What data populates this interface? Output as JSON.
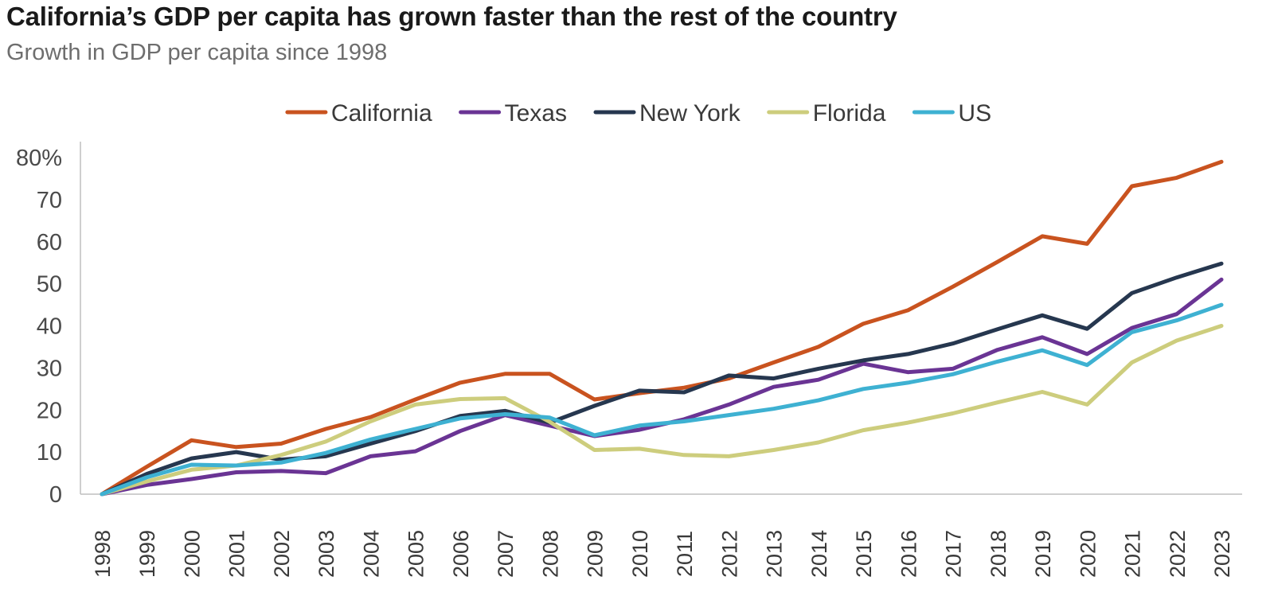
{
  "title": "California’s GDP per capita has grown faster than the rest of the country",
  "subtitle": "Growth in GDP per capita since 1998",
  "chart_data": {
    "type": "line",
    "x": [
      "1998",
      "1999",
      "2000",
      "2001",
      "2002",
      "2003",
      "2004",
      "2005",
      "2006",
      "2007",
      "2008",
      "2009",
      "2010",
      "2011",
      "2012",
      "2013",
      "2014",
      "2015",
      "2016",
      "2017",
      "2018",
      "2019",
      "2020",
      "2021",
      "2022",
      "2023"
    ],
    "y_ticks": [
      "0",
      "10",
      "20",
      "30",
      "40",
      "50",
      "60",
      "70",
      "80%"
    ],
    "ylim": [
      0,
      80
    ],
    "grid": false,
    "legend_position": "top",
    "series": [
      {
        "name": "California",
        "color": "#c9531f",
        "values": [
          0,
          6.5,
          12.8,
          11.2,
          12.0,
          15.5,
          18.3,
          22.5,
          26.5,
          28.6,
          28.6,
          22.5,
          24.0,
          25.3,
          27.5,
          31.3,
          35.0,
          40.5,
          43.7,
          49.3,
          55.2,
          61.3,
          59.5,
          73.2,
          75.2,
          79.0
        ]
      },
      {
        "name": "Texas",
        "color": "#6a3494",
        "values": [
          0,
          2.2,
          3.6,
          5.2,
          5.5,
          5.0,
          9.0,
          10.2,
          15.0,
          18.8,
          16.3,
          13.8,
          15.3,
          17.8,
          21.3,
          25.5,
          27.2,
          31.0,
          29.0,
          29.8,
          34.3,
          37.3,
          33.3,
          39.5,
          42.8,
          51.0
        ]
      },
      {
        "name": "New York",
        "color": "#26374f",
        "values": [
          0,
          4.8,
          8.5,
          10.0,
          8.2,
          9.0,
          12.0,
          15.0,
          18.6,
          19.8,
          17.0,
          21.0,
          24.6,
          24.2,
          28.2,
          27.5,
          29.8,
          31.8,
          33.3,
          35.8,
          39.2,
          42.5,
          39.3,
          47.8,
          51.5,
          54.8
        ]
      },
      {
        "name": "Florida",
        "color": "#cdcd7d",
        "values": [
          0,
          3.0,
          5.8,
          6.8,
          9.3,
          12.5,
          17.3,
          21.3,
          22.6,
          22.8,
          17.2,
          10.5,
          10.8,
          9.3,
          9.0,
          10.5,
          12.3,
          15.2,
          17.0,
          19.2,
          21.8,
          24.3,
          21.3,
          31.3,
          36.5,
          40.0
        ]
      },
      {
        "name": "US",
        "color": "#3eb1d2",
        "values": [
          0,
          4.0,
          7.0,
          6.8,
          7.5,
          9.8,
          13.0,
          15.5,
          18.0,
          19.0,
          18.2,
          14.0,
          16.3,
          17.3,
          18.8,
          20.3,
          22.3,
          25.0,
          26.5,
          28.5,
          31.5,
          34.2,
          30.7,
          38.5,
          41.3,
          45.0
        ]
      }
    ]
  }
}
